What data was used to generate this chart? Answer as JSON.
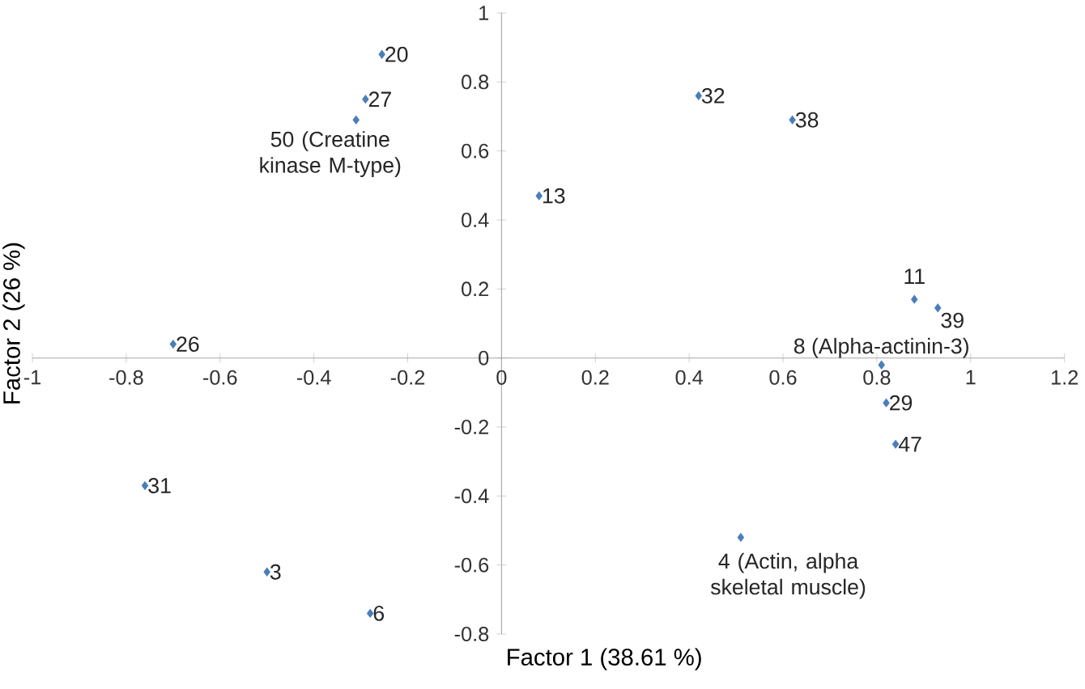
{
  "chart_data": {
    "type": "scatter",
    "xlabel": "Factor 1 (38.61 %)",
    "ylabel": "Factor 2 (26 %)",
    "x": [
      -0.255,
      -0.29,
      -0.31,
      -0.7,
      0.08,
      0.42,
      0.62,
      0.88,
      0.93,
      0.81,
      0.82,
      0.84,
      0.51,
      -0.76,
      -0.5,
      -0.28
    ],
    "values": [
      0.88,
      0.75,
      0.69,
      0.04,
      0.47,
      0.76,
      0.69,
      0.17,
      0.145,
      -0.02,
      -0.13,
      -0.25,
      -0.52,
      -0.37,
      -0.62,
      -0.74
    ],
    "color": "#4a7ebb",
    "marker": "diamond",
    "xlim": [
      -1,
      1.2
    ],
    "ylim": [
      -0.8,
      1
    ],
    "xticks": [
      -1,
      -0.8,
      -0.6,
      -0.4,
      -0.2,
      0,
      0.2,
      0.4,
      0.6,
      0.8,
      1,
      1.2
    ],
    "yticks": [
      -0.8,
      -0.6,
      -0.4,
      -0.2,
      0,
      0.2,
      0.4,
      0.6,
      0.8,
      1
    ],
    "annotations": [
      {
        "text": "20",
        "x": -0.255,
        "y": 0.88
      },
      {
        "text": "27",
        "x": -0.29,
        "y": 0.75
      },
      {
        "text": "50 (Creatine kinase M-type)",
        "x": -0.31,
        "y": 0.69
      },
      {
        "text": "26",
        "x": -0.7,
        "y": 0.04
      },
      {
        "text": "13",
        "x": 0.08,
        "y": 0.47
      },
      {
        "text": "32",
        "x": 0.42,
        "y": 0.76
      },
      {
        "text": "38",
        "x": 0.62,
        "y": 0.69
      },
      {
        "text": "11",
        "x": 0.88,
        "y": 0.17
      },
      {
        "text": "39",
        "x": 0.93,
        "y": 0.145
      },
      {
        "text": "8 (Alpha-actinin-3)",
        "x": 0.81,
        "y": -0.02
      },
      {
        "text": "29",
        "x": 0.82,
        "y": -0.13
      },
      {
        "text": "47",
        "x": 0.84,
        "y": -0.25
      },
      {
        "text": "4 (Actin, alpha skeletal muscle)",
        "x": 0.51,
        "y": -0.52
      },
      {
        "text": "31",
        "x": -0.76,
        "y": -0.37
      },
      {
        "text": "3",
        "x": -0.5,
        "y": -0.62
      },
      {
        "text": "6",
        "x": -0.28,
        "y": -0.74
      }
    ]
  }
}
